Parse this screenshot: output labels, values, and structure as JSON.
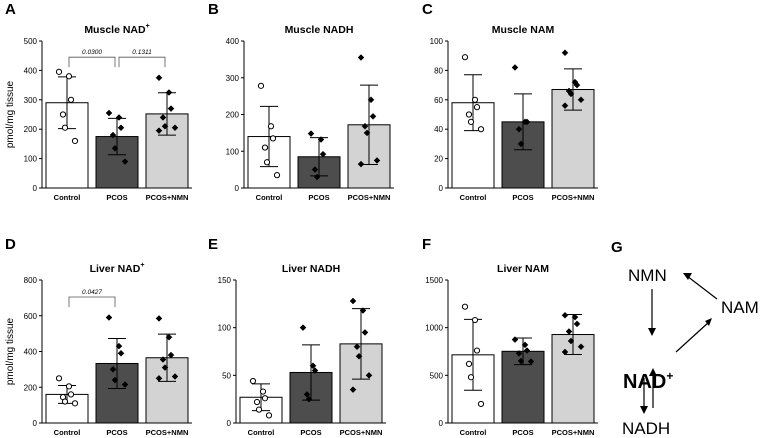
{
  "figure": {
    "categories": [
      "Control",
      "PCOS",
      "PCOS+NMN"
    ],
    "bar_colors": [
      "#ffffff",
      "#4d4d4d",
      "#d3d3d3"
    ],
    "markers": [
      "circle",
      "diamond",
      "diamond"
    ],
    "y_axis_label": "pmol/mg tissue"
  },
  "chart_data": [
    {
      "letter": "A",
      "type": "bar",
      "title_main": "Muscle NAD",
      "title_sup": "+",
      "categories": [
        "Control",
        "PCOS",
        "PCOS+NMN"
      ],
      "values": [
        290,
        175,
        252
      ],
      "sd": [
        88,
        62,
        72
      ],
      "points": [
        [
          395,
          380,
          300,
          250,
          205,
          160
        ],
        [
          255,
          240,
          205,
          180,
          135,
          90
        ],
        [
          375,
          325,
          270,
          240,
          210,
          205,
          195
        ]
      ],
      "ylim": [
        0,
        500
      ],
      "yticks": [
        0,
        100,
        200,
        300,
        400,
        500
      ],
      "ylabel": "pmol/mg tissue",
      "grid": false,
      "annotations": [
        {
          "from": 0,
          "to": 1,
          "label": "0.0300",
          "value": 445
        },
        {
          "from": 1,
          "to": 2,
          "label": "0.1311",
          "value": 445
        }
      ]
    },
    {
      "letter": "B",
      "type": "bar",
      "title_main": "Muscle NADH",
      "title_sup": "",
      "categories": [
        "Control",
        "PCOS",
        "PCOS+NMN"
      ],
      "values": [
        140,
        85,
        172
      ],
      "sd": [
        82,
        52,
        108
      ],
      "points": [
        [
          278,
          168,
          135,
          110,
          70,
          35
        ],
        [
          148,
          132,
          92,
          50,
          30
        ],
        [
          355,
          240,
          195,
          168,
          150,
          75,
          65
        ]
      ],
      "ylim": [
        0,
        400
      ],
      "yticks": [
        0,
        100,
        200,
        300,
        400
      ],
      "ylabel": "",
      "grid": false,
      "annotations": []
    },
    {
      "letter": "C",
      "type": "bar",
      "title_main": "Muscle NAM",
      "title_sup": "",
      "categories": [
        "Control",
        "PCOS",
        "PCOS+NMN"
      ],
      "values": [
        58,
        45,
        67
      ],
      "sd": [
        19,
        19,
        14
      ],
      "points": [
        [
          89,
          60,
          55,
          50,
          45,
          40
        ],
        [
          82,
          45,
          45,
          40,
          30
        ],
        [
          92,
          72,
          70,
          66,
          64,
          60,
          56
        ]
      ],
      "ylim": [
        0,
        100
      ],
      "yticks": [
        0,
        20,
        40,
        60,
        80,
        100
      ],
      "ylabel": "",
      "grid": false,
      "annotations": []
    },
    {
      "letter": "D",
      "type": "bar",
      "title_main": "Liver NAD",
      "title_sup": "+",
      "categories": [
        "Control",
        "PCOS",
        "PCOS+NMN"
      ],
      "values": [
        160,
        333,
        365
      ],
      "sd": [
        50,
        140,
        132
      ],
      "points": [
        [
          250,
          205,
          160,
          145,
          120,
          110
        ],
        [
          590,
          430,
          390,
          300,
          240,
          215
        ],
        [
          585,
          480,
          380,
          355,
          310,
          260,
          250
        ]
      ],
      "ylim": [
        0,
        800
      ],
      "yticks": [
        0,
        200,
        400,
        600,
        800
      ],
      "ylabel": "pmol/mg tissue",
      "grid": false,
      "annotations": [
        {
          "from": 0,
          "to": 1,
          "label": "0.0427",
          "value": 705
        }
      ]
    },
    {
      "letter": "E",
      "type": "bar",
      "title_main": "Liver NADH",
      "title_sup": "",
      "categories": [
        "Control",
        "PCOS",
        "PCOS+NMN"
      ],
      "values": [
        27,
        53,
        83
      ],
      "sd": [
        14,
        29,
        37
      ],
      "points": [
        [
          44,
          33,
          26,
          22,
          14,
          8
        ],
        [
          100,
          60,
          55,
          30,
          25
        ],
        [
          128,
          118,
          95,
          80,
          70,
          50,
          35
        ]
      ],
      "ylim": [
        0,
        150
      ],
      "yticks": [
        0,
        50,
        100,
        150
      ],
      "ylabel": "",
      "grid": false,
      "annotations": []
    },
    {
      "letter": "F",
      "type": "bar",
      "title_main": "Liver NAM",
      "title_sup": "",
      "categories": [
        "Control",
        "PCOS",
        "PCOS+NMN"
      ],
      "values": [
        715,
        752,
        928
      ],
      "sd": [
        372,
        140,
        210
      ],
      "points": [
        [
          1220,
          1080,
          760,
          620,
          480,
          200
        ],
        [
          875,
          820,
          760,
          730,
          650,
          645
        ],
        [
          1130,
          1110,
          1040,
          960,
          860,
          800,
          745
        ]
      ],
      "ylim": [
        0,
        1500
      ],
      "yticks": [
        0,
        500,
        1000,
        1500
      ],
      "ylabel": "",
      "grid": false,
      "annotations": []
    }
  ],
  "diagram": {
    "letter": "G",
    "nodes": {
      "nmn": "NMN",
      "nam": "NAM",
      "nad_main": "NAD",
      "nad_sup": "+",
      "nadh": "NADH"
    }
  }
}
